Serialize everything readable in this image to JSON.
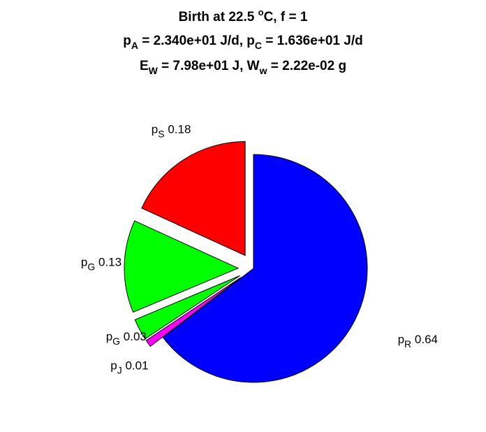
{
  "chart_data": {
    "type": "pie",
    "title_lines": [
      [
        {
          "text": "Birth at 22.5 ",
          "style": "normal"
        },
        {
          "text": "o",
          "style": "sup"
        },
        {
          "text": "C, f = 1",
          "style": "normal"
        }
      ],
      [
        {
          "text": "p",
          "style": "normal"
        },
        {
          "text": "A",
          "style": "sub"
        },
        {
          "text": " = 2.340e+01 J/d, p",
          "style": "normal"
        },
        {
          "text": "C",
          "style": "sub"
        },
        {
          "text": " = 1.636e+01 J/d",
          "style": "normal"
        }
      ],
      [
        {
          "text": "E",
          "style": "normal"
        },
        {
          "text": "W",
          "style": "sub"
        },
        {
          "text": " = 7.98e+01 J, W",
          "style": "normal"
        },
        {
          "text": "w",
          "style": "sub"
        },
        {
          "text": " = 2.22e-02 g",
          "style": "normal"
        }
      ]
    ],
    "slices": [
      {
        "symbol": "p",
        "sub": "R",
        "label_value": "0.64",
        "value": 0.64,
        "color": "#0000ff",
        "exploded": false
      },
      {
        "symbol": "p",
        "sub": "J",
        "label_value": "0.01",
        "value": 0.01,
        "color": "#ff00ff",
        "exploded": true
      },
      {
        "symbol": "p",
        "sub": "G",
        "label_value": "0.03",
        "value": 0.03,
        "color": "#00ff00",
        "exploded": true
      },
      {
        "symbol": "p",
        "sub": "G",
        "label_value": "0.13",
        "value": 0.13,
        "color": "#00ff00",
        "exploded": true
      },
      {
        "symbol": "p",
        "sub": "S",
        "label_value": "0.18",
        "value": 0.18,
        "color": "#ff0000",
        "exploded": true
      }
    ],
    "start_angle_deg": 90,
    "direction": "clockwise",
    "edge_color": "#000000"
  }
}
